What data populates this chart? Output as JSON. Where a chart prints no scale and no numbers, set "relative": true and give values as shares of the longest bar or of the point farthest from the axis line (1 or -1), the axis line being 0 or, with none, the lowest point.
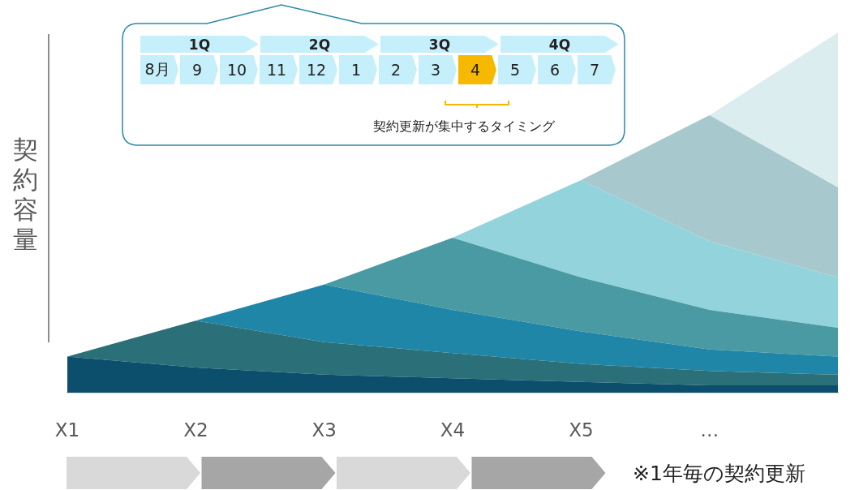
{
  "chart_data": {
    "type": "area",
    "stacked": true,
    "relative": true,
    "marker": "none",
    "legend": false,
    "tick_labels": "x",
    "ylabel": "契約容量",
    "categories": [
      "X1",
      "X2",
      "X3",
      "X4",
      "X5",
      "…",
      null
    ],
    "series": [
      {
        "color": "#0b4f6c",
        "values": [
          0.1,
          0.07,
          0.05,
          0.04,
          0.03,
          0.02,
          0.02
        ]
      },
      {
        "color": "#2b6f78",
        "values": [
          0,
          0.13,
          0.09,
          0.07,
          0.05,
          0.04,
          0.03
        ]
      },
      {
        "color": "#1f86a8",
        "values": [
          0,
          0,
          0.16,
          0.12,
          0.09,
          0.06,
          0.05
        ]
      },
      {
        "color": "#4a9aa3",
        "values": [
          0,
          0,
          0,
          0.2,
          0.15,
          0.11,
          0.08
        ]
      },
      {
        "color": "#93d3dc",
        "values": [
          0,
          0,
          0,
          0,
          0.27,
          0.19,
          0.14
        ]
      },
      {
        "color": "#a7c9ce",
        "values": [
          0,
          0,
          0,
          0,
          0,
          0.35,
          0.25
        ]
      },
      {
        "color": "#dcedf0",
        "values": [
          0,
          0,
          0,
          0,
          0,
          0,
          0.43
        ]
      }
    ],
    "annotations": [
      "1Q",
      "2Q",
      "3Q",
      "4Q",
      "8月",
      "9",
      "10",
      "11",
      "12",
      "1",
      "2",
      "3",
      "4",
      "5",
      "6",
      "7",
      "契約更新が集中するタイミング",
      "※1年毎の契約更新"
    ]
  }
}
